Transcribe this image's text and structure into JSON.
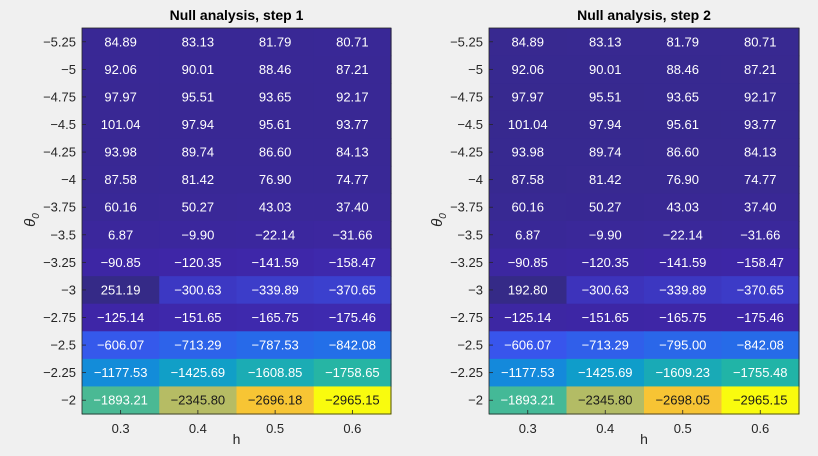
{
  "chart_data": [
    {
      "type": "heatmap",
      "title": "Null analysis, step 1",
      "xlabel": "h",
      "ylabel": "θ",
      "ylabel_subscript": "0",
      "x": [
        "0.3",
        "0.4",
        "0.5",
        "0.6"
      ],
      "y": [
        "-5.25",
        "-5",
        "-4.75",
        "-4.5",
        "-4.25",
        "-4",
        "-3.75",
        "-3.5",
        "-3.25",
        "-3",
        "-2.75",
        "-2.5",
        "-2.25",
        "-2"
      ],
      "colormap": "parula",
      "values": [
        [
          84.89,
          83.13,
          81.79,
          80.71
        ],
        [
          92.06,
          90.01,
          88.46,
          87.21
        ],
        [
          97.97,
          95.51,
          93.65,
          92.17
        ],
        [
          101.04,
          97.94,
          95.61,
          93.77
        ],
        [
          93.98,
          89.74,
          86.6,
          84.13
        ],
        [
          87.58,
          81.42,
          76.9,
          74.77
        ],
        [
          60.16,
          50.27,
          43.03,
          37.4
        ],
        [
          6.87,
          -9.9,
          -22.14,
          -31.66
        ],
        [
          -90.85,
          -120.35,
          -141.59,
          -158.47
        ],
        [
          251.19,
          -300.63,
          -339.89,
          -370.65
        ],
        [
          -125.14,
          -151.65,
          -165.75,
          -175.46
        ],
        [
          -606.07,
          -713.29,
          -787.53,
          -842.08
        ],
        [
          -1177.53,
          -1425.69,
          -1608.85,
          -1758.65
        ],
        [
          -1893.21,
          -2345.8,
          -2696.18,
          -2965.15
        ]
      ],
      "labels": [
        [
          "84.89",
          "83.13",
          "81.79",
          "80.71"
        ],
        [
          "92.06",
          "90.01",
          "88.46",
          "87.21"
        ],
        [
          "97.97",
          "95.51",
          "93.65",
          "92.17"
        ],
        [
          "101.04",
          "97.94",
          "95.61",
          "93.77"
        ],
        [
          "93.98",
          "89.74",
          "86.60",
          "84.13"
        ],
        [
          "87.58",
          "81.42",
          "76.90",
          "74.77"
        ],
        [
          "60.16",
          "50.27",
          "43.03",
          "37.40"
        ],
        [
          "6.87",
          "−9.90",
          "−22.14",
          "−31.66"
        ],
        [
          "−90.85",
          "−120.35",
          "−141.59",
          "−158.47"
        ],
        [
          "251.19",
          "−300.63",
          "−339.89",
          "−370.65"
        ],
        [
          "−125.14",
          "−151.65",
          "−165.75",
          "−175.46"
        ],
        [
          "−606.07",
          "−713.29",
          "−787.53",
          "−842.08"
        ],
        [
          "−1177.53",
          "−1425.69",
          "−1608.85",
          "−1758.65"
        ],
        [
          "−1893.21",
          "−2345.80",
          "−2696.18",
          "−2965.15"
        ]
      ]
    },
    {
      "type": "heatmap",
      "title": "Null analysis, step 2",
      "xlabel": "h",
      "ylabel": "θ",
      "ylabel_subscript": "0",
      "x": [
        "0.3",
        "0.4",
        "0.5",
        "0.6"
      ],
      "y": [
        "-5.25",
        "-5",
        "-4.75",
        "-4.5",
        "-4.25",
        "-4",
        "-3.75",
        "-3.5",
        "-3.25",
        "-3",
        "-2.75",
        "-2.5",
        "-2.25",
        "-2"
      ],
      "colormap": "parula",
      "values": [
        [
          84.89,
          83.13,
          81.79,
          80.71
        ],
        [
          92.06,
          90.01,
          88.46,
          87.21
        ],
        [
          97.97,
          95.51,
          93.65,
          92.17
        ],
        [
          101.04,
          97.94,
          95.61,
          93.77
        ],
        [
          93.98,
          89.74,
          86.6,
          84.13
        ],
        [
          87.58,
          81.42,
          76.9,
          74.77
        ],
        [
          60.16,
          50.27,
          43.03,
          37.4
        ],
        [
          6.87,
          -9.9,
          -22.14,
          -31.66
        ],
        [
          -90.85,
          -120.35,
          -141.59,
          -158.47
        ],
        [
          192.8,
          -300.63,
          -339.89,
          -370.65
        ],
        [
          -125.14,
          -151.65,
          -165.75,
          -175.46
        ],
        [
          -606.07,
          -713.29,
          -795.0,
          -842.08
        ],
        [
          -1177.53,
          -1425.69,
          -1609.23,
          -1755.48
        ],
        [
          -1893.21,
          -2345.8,
          -2698.05,
          -2965.15
        ]
      ],
      "labels": [
        [
          "84.89",
          "83.13",
          "81.79",
          "80.71"
        ],
        [
          "92.06",
          "90.01",
          "88.46",
          "87.21"
        ],
        [
          "97.97",
          "95.51",
          "93.65",
          "92.17"
        ],
        [
          "101.04",
          "97.94",
          "95.61",
          "93.77"
        ],
        [
          "93.98",
          "89.74",
          "86.60",
          "84.13"
        ],
        [
          "87.58",
          "81.42",
          "76.90",
          "74.77"
        ],
        [
          "60.16",
          "50.27",
          "43.03",
          "37.40"
        ],
        [
          "6.87",
          "−9.90",
          "−22.14",
          "−31.66"
        ],
        [
          "−90.85",
          "−120.35",
          "−141.59",
          "−158.47"
        ],
        [
          "192.80",
          "−300.63",
          "−339.89",
          "−370.65"
        ],
        [
          "−125.14",
          "−151.65",
          "−165.75",
          "−175.46"
        ],
        [
          "−606.07",
          "−713.29",
          "−795.00",
          "−842.08"
        ],
        [
          "−1177.53",
          "−1425.69",
          "−1609.23",
          "−1755.48"
        ],
        [
          "−1893.21",
          "−2345.80",
          "−2698.05",
          "−2965.15"
        ]
      ],
      "ytick_labels": [
        "−5.25",
        "−5",
        "−4.75",
        "−4.5",
        "−4.25",
        "−4",
        "−3.75",
        "−3.5",
        "−3.25",
        "−3",
        "−2.75",
        "−2.5",
        "−2.25",
        "−2"
      ]
    }
  ]
}
